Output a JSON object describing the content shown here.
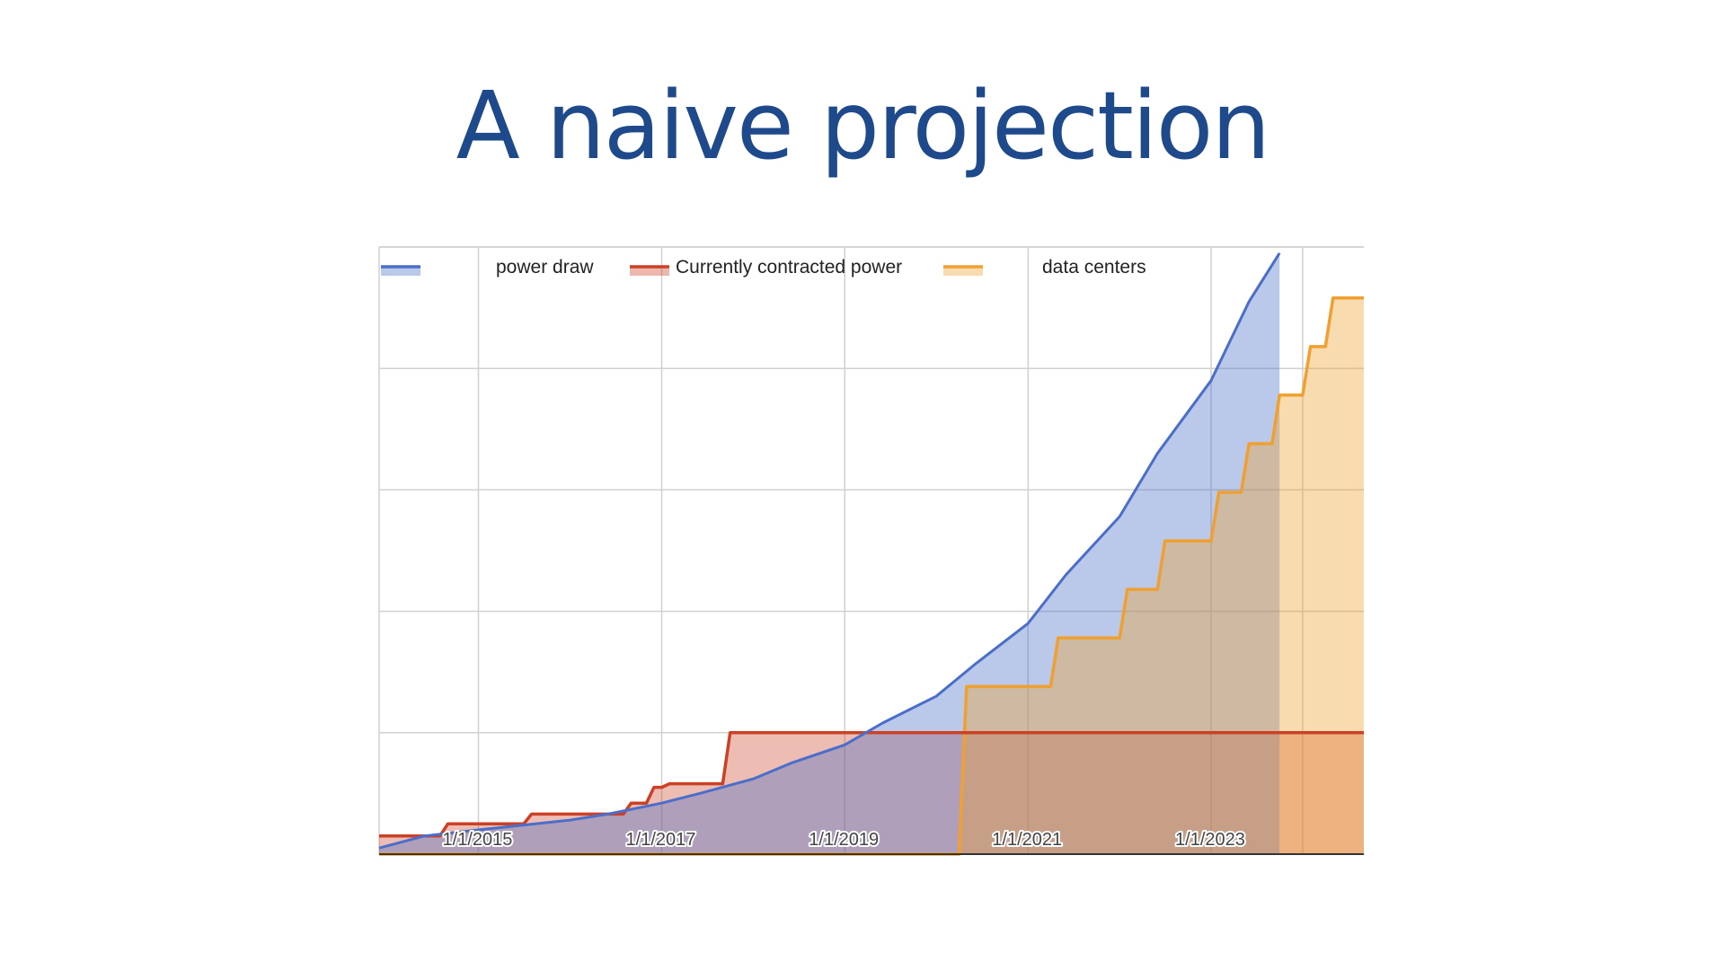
{
  "slide": {
    "title": "A naive projection"
  },
  "colors": {
    "title": "#1e4a8c",
    "power_draw": "#4a6ec9",
    "contracted": "#cc4125",
    "data_centers": "#f0a030"
  },
  "chart_data": {
    "type": "area",
    "title": "",
    "xlabel": "",
    "ylabel": "",
    "xlim": [
      "2013-12-01",
      "2024-09-01"
    ],
    "ylim": [
      0,
      5
    ],
    "grid": true,
    "legend_position": "top",
    "x_ticks": [
      "1/1/2015",
      "1/1/2017",
      "1/1/2019",
      "1/1/2021",
      "1/1/2023"
    ],
    "x_tick_dates": [
      "2015-01-01",
      "2017-01-01",
      "2019-01-01",
      "2021-01-01",
      "2023-01-01"
    ],
    "series": [
      {
        "name": "power draw",
        "kind": "line",
        "color": "#4a6ec9",
        "points": [
          [
            "2013-12-01",
            0.05
          ],
          [
            "2014-06-01",
            0.15
          ],
          [
            "2015-01-01",
            0.2
          ],
          [
            "2016-01-01",
            0.28
          ],
          [
            "2016-06-01",
            0.33
          ],
          [
            "2017-01-01",
            0.42
          ],
          [
            "2017-06-01",
            0.5
          ],
          [
            "2018-01-01",
            0.62
          ],
          [
            "2018-06-01",
            0.75
          ],
          [
            "2019-01-01",
            0.9
          ],
          [
            "2019-06-01",
            1.08
          ],
          [
            "2020-01-01",
            1.3
          ],
          [
            "2020-06-01",
            1.56
          ],
          [
            "2021-01-01",
            1.9
          ],
          [
            "2021-06-01",
            2.3
          ],
          [
            "2022-01-01",
            2.78
          ],
          [
            "2022-06-01",
            3.3
          ],
          [
            "2023-01-01",
            3.9
          ],
          [
            "2023-06-01",
            4.55
          ],
          [
            "2023-10-01",
            4.95
          ]
        ]
      },
      {
        "name": "Currently contracted power",
        "kind": "step",
        "color": "#cc4125",
        "points": [
          [
            "2013-12-01",
            0.15
          ],
          [
            "2014-08-01",
            0.15
          ],
          [
            "2014-09-01",
            0.25
          ],
          [
            "2015-07-01",
            0.25
          ],
          [
            "2015-08-01",
            0.33
          ],
          [
            "2016-08-01",
            0.33
          ],
          [
            "2016-09-01",
            0.42
          ],
          [
            "2016-11-01",
            0.42
          ],
          [
            "2016-12-01",
            0.55
          ],
          [
            "2017-01-01",
            0.55
          ],
          [
            "2017-02-01",
            0.58
          ],
          [
            "2017-09-01",
            0.58
          ],
          [
            "2017-10-01",
            1.0
          ],
          [
            "2024-09-01",
            1.0
          ]
        ]
      },
      {
        "name": "data centers",
        "kind": "step",
        "color": "#f0a030",
        "points": [
          [
            "2013-12-01",
            0.0
          ],
          [
            "2020-04-01",
            0.0
          ],
          [
            "2020-05-01",
            1.38
          ],
          [
            "2021-04-01",
            1.38
          ],
          [
            "2021-05-01",
            1.78
          ],
          [
            "2022-01-01",
            1.78
          ],
          [
            "2022-02-01",
            2.18
          ],
          [
            "2022-06-01",
            2.18
          ],
          [
            "2022-07-01",
            2.58
          ],
          [
            "2023-01-01",
            2.58
          ],
          [
            "2023-02-01",
            2.98
          ],
          [
            "2023-05-01",
            2.98
          ],
          [
            "2023-06-01",
            3.38
          ],
          [
            "2023-09-01",
            3.38
          ],
          [
            "2023-10-01",
            3.78
          ],
          [
            "2024-01-01",
            3.78
          ],
          [
            "2024-02-01",
            4.18
          ],
          [
            "2024-04-01",
            4.18
          ],
          [
            "2024-05-01",
            4.58
          ],
          [
            "2024-09-01",
            4.58
          ]
        ]
      }
    ]
  }
}
